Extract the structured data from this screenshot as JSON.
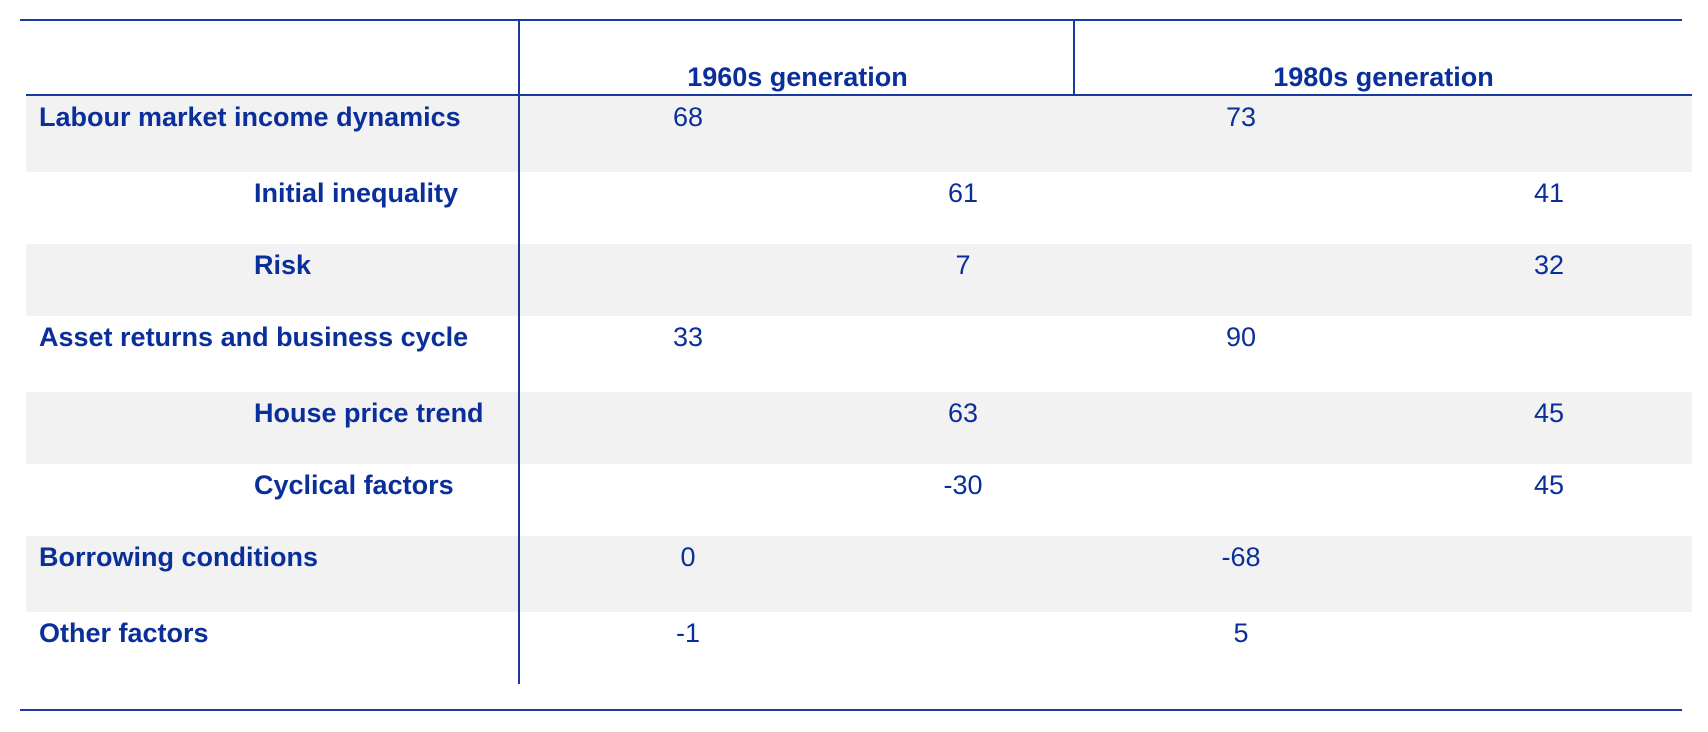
{
  "table": {
    "columns": [
      "1960s generation",
      "1980s generation"
    ],
    "rows": [
      {
        "label": "Labour market income dynamics",
        "level": 0,
        "v1960": "68",
        "v1980": "73",
        "shaded": true
      },
      {
        "label": "Initial inequality",
        "level": 1,
        "v1960": "61",
        "v1980": "41",
        "shaded": false
      },
      {
        "label": "Risk",
        "level": 1,
        "v1960": "7",
        "v1980": "32",
        "shaded": true
      },
      {
        "label": "Asset returns and business cycle",
        "level": 0,
        "v1960": "33",
        "v1980": "90",
        "shaded": false
      },
      {
        "label": "House price trend",
        "level": 1,
        "v1960": "63",
        "v1980": "45",
        "shaded": true
      },
      {
        "label": "Cyclical factors",
        "level": 1,
        "v1960": "-30",
        "v1980": "45",
        "shaded": false
      },
      {
        "label": "Borrowing conditions",
        "level": 0,
        "v1960": "0",
        "v1980": "-68",
        "shaded": true
      },
      {
        "label": "Other factors",
        "level": 0,
        "v1960": "-1",
        "v1980": "5",
        "shaded": false
      }
    ]
  }
}
